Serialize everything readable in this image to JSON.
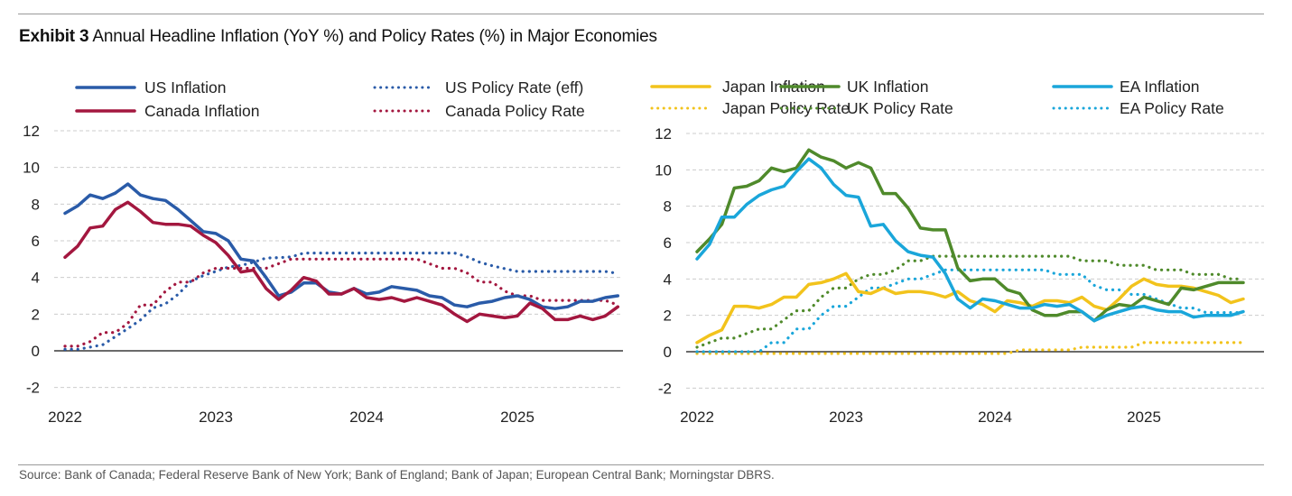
{
  "title": {
    "bold": "Exhibit 3",
    "text": "Annual Headline Inflation (YoY %) and Policy Rates (%) in Major Economies"
  },
  "source": "Source: Bank of Canada; Federal Reserve Bank of New York; Bank of England; Bank of Japan; European Central Bank; Morningstar DBRS.",
  "chart_data": [
    {
      "type": "line",
      "title": "",
      "x_start": "2022-01",
      "frequency": "monthly",
      "xticks": [
        "2022",
        "2023",
        "2024",
        "2025"
      ],
      "yticks": [
        "12",
        "10",
        "8",
        "6",
        "4",
        "2",
        "0",
        "-2"
      ],
      "ylim": [
        -2,
        12
      ],
      "grid": true,
      "legend": "top",
      "series": [
        {
          "name": "US Inflation",
          "color": "#2a5ba8",
          "style": "solid",
          "values": [
            7.5,
            7.9,
            8.5,
            8.3,
            8.6,
            9.1,
            8.5,
            8.3,
            8.2,
            7.7,
            7.1,
            6.5,
            6.4,
            6.0,
            5.0,
            4.9,
            4.0,
            3.0,
            3.2,
            3.7,
            3.7,
            3.2,
            3.1,
            3.4,
            3.1,
            3.2,
            3.5,
            3.4,
            3.3,
            3.0,
            2.9,
            2.5,
            2.4,
            2.6,
            2.7,
            2.9,
            3.0,
            2.8,
            2.4,
            2.3,
            2.4,
            2.7,
            2.7,
            2.9,
            3.0
          ]
        },
        {
          "name": "Canada Inflation",
          "color": "#a3173f",
          "style": "solid",
          "values": [
            5.1,
            5.7,
            6.7,
            6.8,
            7.7,
            8.1,
            7.6,
            7.0,
            6.9,
            6.9,
            6.8,
            6.3,
            5.9,
            5.2,
            4.3,
            4.4,
            3.4,
            2.8,
            3.3,
            4.0,
            3.8,
            3.1,
            3.1,
            3.4,
            2.9,
            2.8,
            2.9,
            2.7,
            2.9,
            2.7,
            2.5,
            2.0,
            1.6,
            2.0,
            1.9,
            1.8,
            1.9,
            2.6,
            2.3,
            1.7,
            1.7,
            1.9,
            1.7,
            1.9,
            2.4
          ]
        },
        {
          "name": "US Policy Rate (eff)",
          "color": "#2a5ba8",
          "style": "dotted",
          "values": [
            0.08,
            0.08,
            0.2,
            0.33,
            0.77,
            1.21,
            1.68,
            2.33,
            2.56,
            3.08,
            3.78,
            4.1,
            4.33,
            4.57,
            4.65,
            4.83,
            5.06,
            5.08,
            5.12,
            5.33,
            5.33,
            5.33,
            5.33,
            5.33,
            5.33,
            5.33,
            5.33,
            5.33,
            5.33,
            5.33,
            5.33,
            5.33,
            5.13,
            4.83,
            4.64,
            4.48,
            4.33,
            4.33,
            4.33,
            4.33,
            4.33,
            4.33,
            4.33,
            4.33,
            4.22
          ]
        },
        {
          "name": "Canada Policy Rate",
          "color": "#a3173f",
          "style": "dotted",
          "values": [
            0.25,
            0.25,
            0.5,
            1.0,
            1.0,
            1.5,
            2.5,
            2.5,
            3.25,
            3.75,
            3.75,
            4.25,
            4.5,
            4.5,
            4.5,
            4.5,
            4.5,
            4.75,
            5,
            5,
            5,
            5,
            5,
            5,
            5,
            5,
            5,
            5,
            5,
            4.75,
            4.5,
            4.5,
            4.25,
            3.75,
            3.75,
            3.25,
            3.0,
            3.0,
            2.75,
            2.75,
            2.75,
            2.75,
            2.75,
            2.75,
            2.5
          ]
        }
      ]
    },
    {
      "type": "line",
      "title": "",
      "x_start": "2022-01",
      "frequency": "monthly",
      "xticks": [
        "2022",
        "2023",
        "2024",
        "2025"
      ],
      "yticks": [
        "12",
        "10",
        "8",
        "6",
        "4",
        "2",
        "0",
        "-2"
      ],
      "ylim": [
        -2,
        12
      ],
      "grid": true,
      "legend": "top",
      "series": [
        {
          "name": "Japan Inflation",
          "color": "#f2c31c",
          "style": "solid",
          "values": [
            0.5,
            0.9,
            1.2,
            2.5,
            2.5,
            2.4,
            2.6,
            3.0,
            3.0,
            3.7,
            3.8,
            4.0,
            4.3,
            3.3,
            3.2,
            3.5,
            3.2,
            3.3,
            3.3,
            3.2,
            3.0,
            3.3,
            2.8,
            2.6,
            2.2,
            2.8,
            2.7,
            2.5,
            2.8,
            2.8,
            2.7,
            3.0,
            2.5,
            2.3,
            2.9,
            3.6,
            4.0,
            3.7,
            3.6,
            3.6,
            3.5,
            3.3,
            3.1,
            2.7,
            2.9
          ]
        },
        {
          "name": "UK Inflation",
          "color": "#4f8a2b",
          "style": "solid",
          "values": [
            5.5,
            6.2,
            7.0,
            9.0,
            9.1,
            9.4,
            10.1,
            9.9,
            10.1,
            11.1,
            10.7,
            10.5,
            10.1,
            10.4,
            10.1,
            8.7,
            8.7,
            7.9,
            6.8,
            6.7,
            6.7,
            4.6,
            3.9,
            4.0,
            4.0,
            3.4,
            3.2,
            2.3,
            2.0,
            2.0,
            2.2,
            2.2,
            1.7,
            2.3,
            2.6,
            2.5,
            3.0,
            2.8,
            2.6,
            3.5,
            3.4,
            3.6,
            3.8,
            3.8,
            3.8
          ]
        },
        {
          "name": "EA Inflation",
          "color": "#1aa6da",
          "style": "solid",
          "values": [
            5.1,
            5.9,
            7.4,
            7.4,
            8.1,
            8.6,
            8.9,
            9.1,
            9.9,
            10.6,
            10.1,
            9.2,
            8.6,
            8.5,
            6.9,
            7.0,
            6.1,
            5.5,
            5.3,
            5.2,
            4.3,
            2.9,
            2.4,
            2.9,
            2.8,
            2.6,
            2.4,
            2.4,
            2.6,
            2.5,
            2.6,
            2.2,
            1.7,
            2.0,
            2.2,
            2.4,
            2.5,
            2.3,
            2.2,
            2.2,
            1.9,
            2.0,
            2.0,
            2.0,
            2.2
          ]
        },
        {
          "name": "Japan Policy Rate",
          "color": "#f2c31c",
          "style": "dotted",
          "values": [
            -0.1,
            -0.1,
            -0.1,
            -0.1,
            -0.1,
            -0.1,
            -0.1,
            -0.1,
            -0.1,
            -0.1,
            -0.1,
            -0.1,
            -0.1,
            -0.1,
            -0.1,
            -0.1,
            -0.1,
            -0.1,
            -0.1,
            -0.1,
            -0.1,
            -0.1,
            -0.1,
            -0.1,
            -0.1,
            -0.1,
            0.1,
            0.1,
            0.1,
            0.1,
            0.1,
            0.25,
            0.25,
            0.25,
            0.25,
            0.25,
            0.5,
            0.5,
            0.5,
            0.5,
            0.5,
            0.5,
            0.5,
            0.5,
            0.5
          ]
        },
        {
          "name": "UK Policy Rate",
          "color": "#4f8a2b",
          "style": "dotted",
          "values": [
            0.25,
            0.5,
            0.75,
            0.75,
            1.0,
            1.25,
            1.25,
            1.75,
            2.25,
            2.25,
            3.0,
            3.5,
            3.5,
            4.0,
            4.25,
            4.25,
            4.5,
            5.0,
            5.0,
            5.25,
            5.25,
            5.25,
            5.25,
            5.25,
            5.25,
            5.25,
            5.25,
            5.25,
            5.25,
            5.25,
            5.25,
            5.0,
            5.0,
            5.0,
            4.75,
            4.75,
            4.75,
            4.5,
            4.5,
            4.5,
            4.25,
            4.25,
            4.25,
            4.0,
            4.0
          ]
        },
        {
          "name": "EA Policy Rate",
          "color": "#1aa6da",
          "style": "dotted",
          "values": [
            0,
            0,
            0,
            0,
            0,
            0,
            0.5,
            0.5,
            1.25,
            1.25,
            2.0,
            2.5,
            2.5,
            3.0,
            3.5,
            3.5,
            3.75,
            4.0,
            4.0,
            4.25,
            4.5,
            4.5,
            4.5,
            4.5,
            4.5,
            4.5,
            4.5,
            4.5,
            4.5,
            4.25,
            4.25,
            4.25,
            3.65,
            3.4,
            3.4,
            3.15,
            3.15,
            2.9,
            2.65,
            2.4,
            2.4,
            2.15,
            2.15,
            2.15,
            2.15
          ]
        }
      ]
    }
  ]
}
